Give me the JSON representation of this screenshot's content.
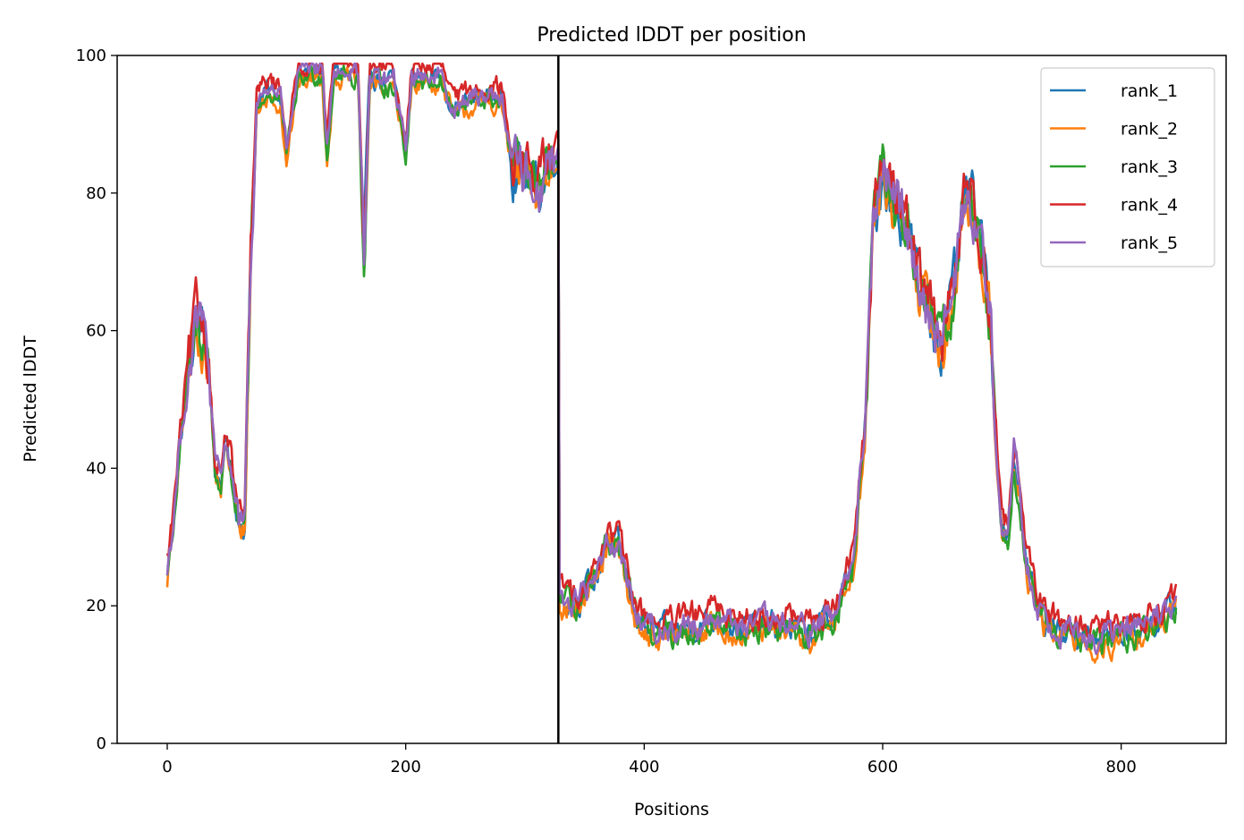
{
  "chart_data": {
    "type": "line",
    "title": "Predicted lDDT per position",
    "xlabel": "Positions",
    "ylabel": "Predicted lDDT",
    "xlim": [
      -42,
      888
    ],
    "ylim": [
      0,
      100
    ],
    "xticks": [
      0,
      200,
      400,
      600,
      800
    ],
    "yticks": [
      0,
      20,
      40,
      60,
      80,
      100
    ],
    "grid": false,
    "legend_position": "top-right",
    "vline_x": 328,
    "series": [
      {
        "name": "rank_1",
        "color": "#1f77b4",
        "offset": 0
      },
      {
        "name": "rank_2",
        "color": "#ff7f0e",
        "offset": -1
      },
      {
        "name": "rank_3",
        "color": "#2ca02c",
        "offset": -0.5
      },
      {
        "name": "rank_4",
        "color": "#d62728",
        "offset": 1.5
      },
      {
        "name": "rank_5",
        "color": "#9467bd",
        "offset": 0.3
      }
    ],
    "base_profile": [
      [
        0,
        25
      ],
      [
        5,
        32
      ],
      [
        10,
        42
      ],
      [
        15,
        50
      ],
      [
        20,
        56
      ],
      [
        25,
        61
      ],
      [
        30,
        60
      ],
      [
        35,
        55
      ],
      [
        40,
        40
      ],
      [
        45,
        38
      ],
      [
        50,
        44
      ],
      [
        55,
        38
      ],
      [
        60,
        32
      ],
      [
        65,
        32
      ],
      [
        70,
        70
      ],
      [
        75,
        93
      ],
      [
        85,
        95
      ],
      [
        95,
        94
      ],
      [
        100,
        86
      ],
      [
        110,
        97
      ],
      [
        130,
        98
      ],
      [
        134,
        86
      ],
      [
        140,
        98
      ],
      [
        160,
        97
      ],
      [
        165,
        70
      ],
      [
        170,
        97
      ],
      [
        190,
        96
      ],
      [
        200,
        86
      ],
      [
        205,
        97
      ],
      [
        230,
        97
      ],
      [
        240,
        92
      ],
      [
        260,
        94
      ],
      [
        280,
        94
      ],
      [
        290,
        84
      ],
      [
        300,
        83
      ],
      [
        310,
        80
      ],
      [
        320,
        84
      ],
      [
        328,
        86
      ],
      [
        329,
        22
      ],
      [
        340,
        20
      ],
      [
        350,
        22
      ],
      [
        360,
        24
      ],
      [
        370,
        30
      ],
      [
        380,
        28
      ],
      [
        390,
        20
      ],
      [
        400,
        17
      ],
      [
        420,
        16
      ],
      [
        440,
        17
      ],
      [
        460,
        18
      ],
      [
        480,
        17
      ],
      [
        500,
        17
      ],
      [
        520,
        17
      ],
      [
        540,
        16
      ],
      [
        560,
        19
      ],
      [
        575,
        26
      ],
      [
        585,
        45
      ],
      [
        592,
        75
      ],
      [
        600,
        83
      ],
      [
        610,
        78
      ],
      [
        620,
        76
      ],
      [
        630,
        68
      ],
      [
        640,
        62
      ],
      [
        650,
        58
      ],
      [
        660,
        66
      ],
      [
        670,
        80
      ],
      [
        680,
        76
      ],
      [
        690,
        62
      ],
      [
        695,
        45
      ],
      [
        700,
        32
      ],
      [
        705,
        30
      ],
      [
        710,
        42
      ],
      [
        715,
        36
      ],
      [
        720,
        26
      ],
      [
        730,
        20
      ],
      [
        740,
        17
      ],
      [
        760,
        16
      ],
      [
        780,
        15
      ],
      [
        800,
        16
      ],
      [
        820,
        17
      ],
      [
        840,
        19
      ],
      [
        846,
        20
      ]
    ]
  }
}
